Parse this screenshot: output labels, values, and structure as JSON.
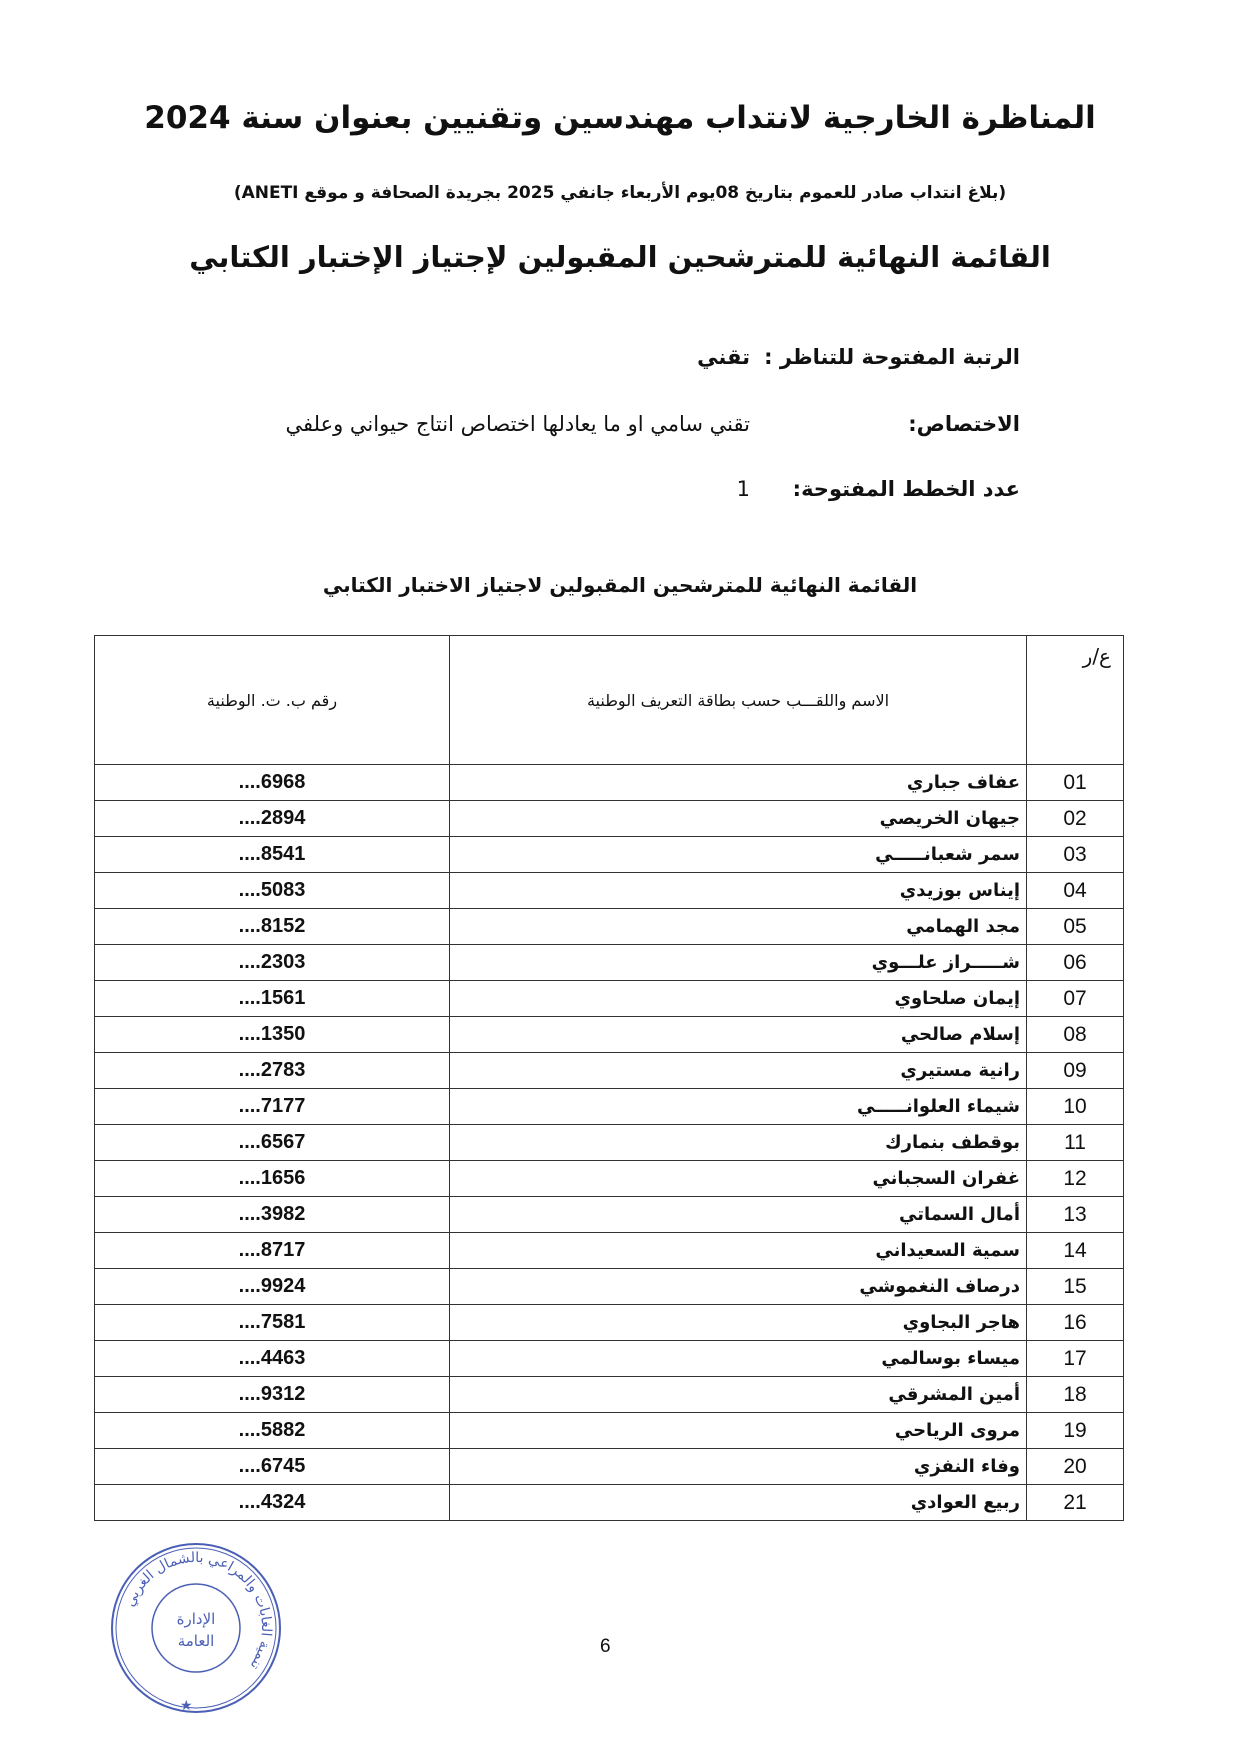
{
  "header": {
    "title": "المناظرة الخارجية لانتداب مهندسين وتقنيين بعنوان سنة 2024",
    "subtitle": "(بلاغ انتداب صادر للعموم بتاريخ 08يوم الأربعاء جانفي 2025 بجريدة الصحافة و موقع ANETI)",
    "list_title": "القائمة النهائية للمترشحين المقبولين لإجتياز الإختبار الكتابي"
  },
  "fields": [
    {
      "label": "الرتبة المفتوحة للتناظر :",
      "value": "تقني"
    },
    {
      "label": "الاختصاص:",
      "value": "تقني سامي او ما يعادلها اختصاص انتاج حيواني وعلفي"
    },
    {
      "label": "عدد الخطط المفتوحة:",
      "value": "1"
    }
  ],
  "table_title": "القائمة النهائية للمترشحين المقبولين لاجتياز الاختبار الكتابي",
  "table": {
    "headers": {
      "num": "ع/ر",
      "name": "الاسم واللقـــب حسب بطاقة التعريف الوطنية",
      "id": "رقم ب. ت. الوطنية"
    },
    "rows": [
      {
        "num": "01",
        "name": "عفاف جباري",
        "id": "....6968"
      },
      {
        "num": "02",
        "name": "جيهان الخريصي",
        "id": "....2894"
      },
      {
        "num": "03",
        "name": "سمر شعبانـــــي",
        "id": "....8541"
      },
      {
        "num": "04",
        "name": "إيناس بوزيدي",
        "id": "....5083"
      },
      {
        "num": "05",
        "name": "مجد الهمامي",
        "id": "....8152"
      },
      {
        "num": "06",
        "name": "شـــــراز علـــوي",
        "id": "....2303"
      },
      {
        "num": "07",
        "name": "إيمان صلحاوي",
        "id": "....1561"
      },
      {
        "num": "08",
        "name": "إسلام صالحي",
        "id": "....1350"
      },
      {
        "num": "09",
        "name": "رانية مستيري",
        "id": "....2783"
      },
      {
        "num": "10",
        "name": "شيماء العلوانـــــي",
        "id": "....7177"
      },
      {
        "num": "11",
        "name": "بوقطف بنمارك",
        "id": "....6567"
      },
      {
        "num": "12",
        "name": "غفران السجباني",
        "id": "....1656"
      },
      {
        "num": "13",
        "name": "أمال السماتي",
        "id": "....3982"
      },
      {
        "num": "14",
        "name": "سمية السعيداني",
        "id": "....8717"
      },
      {
        "num": "15",
        "name": "درصاف النغموشي",
        "id": "....9924"
      },
      {
        "num": "16",
        "name": "هاجر البجاوي",
        "id": "....7581"
      },
      {
        "num": "17",
        "name": "ميساء بوسالمي",
        "id": "....4463"
      },
      {
        "num": "18",
        "name": "أمين المشرقي",
        "id": "....9312"
      },
      {
        "num": "19",
        "name": "مروى الرياحي",
        "id": "....5882"
      },
      {
        "num": "20",
        "name": "وفاء النفزي",
        "id": "....6745"
      },
      {
        "num": "21",
        "name": "ربيع العوادي",
        "id": "....4324"
      }
    ]
  },
  "page_number": "6",
  "stamp": {
    "ring_text": "تنمية الغابات والمراعي بالشمال الغربي",
    "center_line1": "الإدارة",
    "center_line2": "العامة",
    "color": "#4a5fb5"
  }
}
